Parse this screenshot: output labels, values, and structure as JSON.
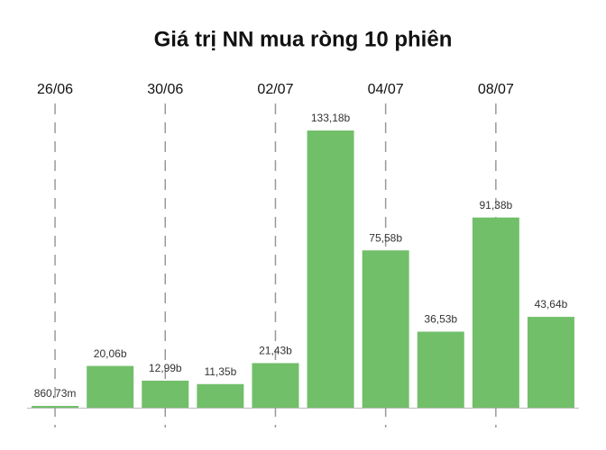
{
  "chart_data": {
    "type": "bar",
    "title": "Giá trị NN mua ròng 10 phiên",
    "categories": [
      "26/06",
      null,
      "30/06",
      null,
      "02/07",
      null,
      "04/07",
      null,
      "08/07",
      null
    ],
    "values": [
      0.86073,
      20.06,
      12.99,
      11.35,
      21.43,
      133.18,
      75.58,
      36.53,
      91.38,
      43.64
    ],
    "value_labels": [
      "860,73m",
      "20,06b",
      "12,99b",
      "11,35b",
      "21,43b",
      "133,18b",
      "75,58b",
      "36,53b",
      "91,38b",
      "43,64b"
    ],
    "color": "#72bf6a"
  }
}
